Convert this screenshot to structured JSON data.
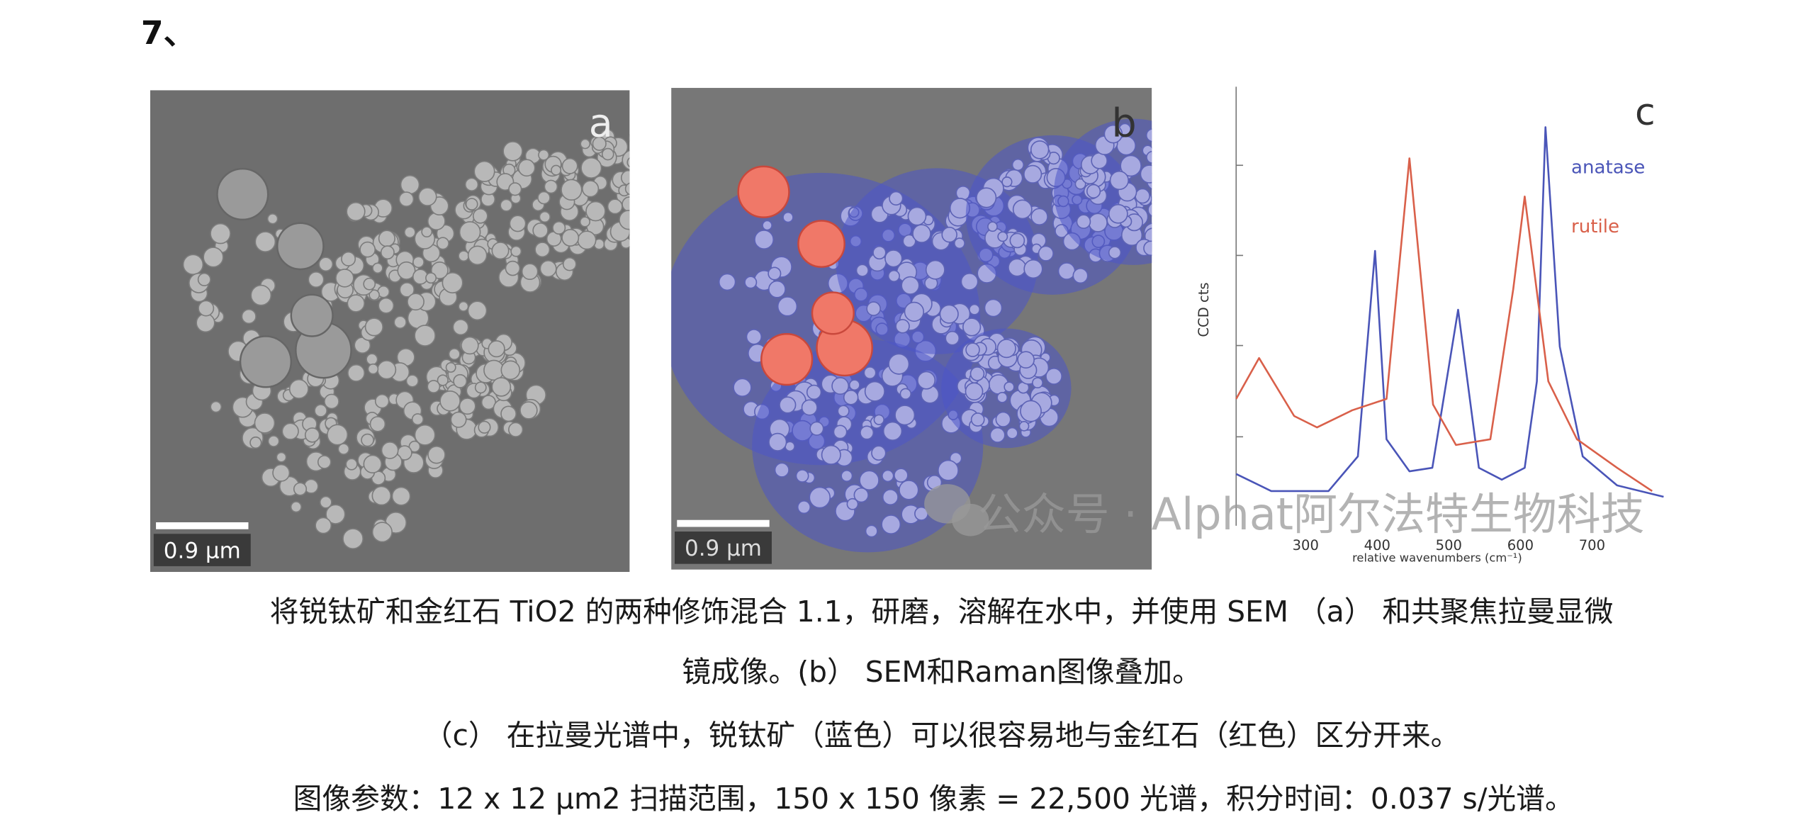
{
  "heading": "7、",
  "figure": {
    "panel_a": {
      "label": "a",
      "scale_bar": "0.9 μm"
    },
    "panel_b": {
      "label": "b",
      "scale_bar": "0.9 μm"
    }
  },
  "chart_data": {
    "type": "line",
    "panel_label": "c",
    "ylabel": "CCD cts",
    "xlabel": "relative wavenumbers (cm⁻¹)",
    "xlim": [
      203,
      800
    ],
    "xticks": [
      300,
      400,
      500,
      600,
      700
    ],
    "ylim": [
      0,
      100
    ],
    "series": [
      {
        "name": "anatase",
        "color": "#4a55b8",
        "x": [
          203,
          252,
          332,
          373,
          397,
          413,
          445,
          477,
          513,
          542,
          574,
          606,
          623,
          635,
          655,
          687,
          735,
          800
        ],
        "values": [
          11.8,
          7.9,
          7.9,
          15.8,
          62.6,
          19.7,
          12.4,
          13.2,
          49.2,
          13.2,
          10.5,
          13.2,
          32.9,
          90.8,
          40.8,
          15.8,
          9.2,
          6.6
        ]
      },
      {
        "name": "rutile",
        "color": "#d9604a",
        "x": [
          203,
          235,
          284,
          316,
          365,
          413,
          445,
          478,
          510,
          558,
          590,
          606,
          639,
          679,
          735,
          784
        ],
        "values": [
          28.9,
          38.2,
          25,
          22.4,
          26.3,
          28.9,
          83.7,
          27.6,
          18.4,
          19.7,
          53.9,
          75,
          32.9,
          19.7,
          13.2,
          7.9
        ]
      }
    ]
  },
  "watermark": "公众号 · Alphat阿尔法特生物科技",
  "caption": [
    "将锐钛矿和金红石 TiO2 的两种修饰混合 1.1，研磨，溶解在水中，并使用 SEM （a） 和共聚焦拉曼显微",
    "镜成像。(b） SEM和Raman图像叠加。",
    "（c） 在拉曼光谱中，锐钛矿（蓝色）可以很容易地与金红石（红色）区分开来。",
    "图像参数：12 x 12 μm2 扫描范围，150 x 150 像素 = 22,500 光谱，积分时间：0.037 s/光谱。"
  ]
}
